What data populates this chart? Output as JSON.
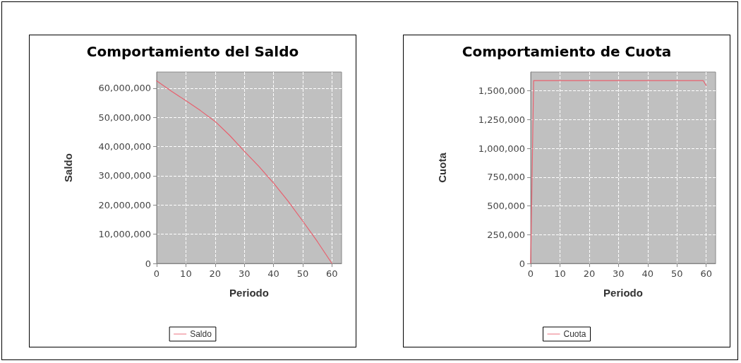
{
  "chart_data": [
    {
      "type": "line",
      "title": "Comportamiento del Saldo",
      "xlabel": "Periodo",
      "ylabel": "Saldo",
      "x": [
        0,
        5,
        10,
        15,
        20,
        25,
        30,
        35,
        40,
        45,
        50,
        55,
        60
      ],
      "series": [
        {
          "name": "Saldo",
          "color": "#e8606e",
          "values": [
            62500000,
            59000000,
            55700000,
            52300000,
            48600000,
            43800000,
            38400000,
            33200000,
            27500000,
            21300000,
            14500000,
            7500000,
            0
          ]
        }
      ],
      "xlim": [
        0,
        63.3
      ],
      "xticks": [
        0,
        10,
        20,
        30,
        40,
        50,
        60
      ],
      "ylim": [
        0,
        65500000
      ],
      "yticks": [
        {
          "value": 0,
          "label": "0"
        },
        {
          "value": 10000000,
          "label": "10,000,000"
        },
        {
          "value": 20000000,
          "label": "20,000,000"
        },
        {
          "value": 30000000,
          "label": "30,000,000"
        },
        {
          "value": 40000000,
          "label": "40,000,000"
        },
        {
          "value": 50000000,
          "label": "50,000,000"
        },
        {
          "value": 60000000,
          "label": "60,000,000"
        }
      ],
      "grid": true,
      "legend": "bottom",
      "marker": "none",
      "line_style": "solid"
    },
    {
      "type": "line",
      "title": "Comportamiento de Cuota",
      "xlabel": "Periodo",
      "ylabel": "Cuota",
      "x": [
        0,
        1,
        59,
        60
      ],
      "series": [
        {
          "name": "Cuota",
          "color": "#e8606e",
          "values": [
            0,
            1588000,
            1588000,
            1545000
          ]
        }
      ],
      "xlim": [
        0,
        63.2
      ],
      "xticks": [
        0,
        10,
        20,
        30,
        40,
        50,
        60
      ],
      "ylim": [
        0,
        1663000
      ],
      "yticks": [
        {
          "value": 0,
          "label": "0"
        },
        {
          "value": 250000,
          "label": "250,000"
        },
        {
          "value": 500000,
          "label": "500,000"
        },
        {
          "value": 750000,
          "label": "750,000"
        },
        {
          "value": 1000000,
          "label": "1,000,000"
        },
        {
          "value": 1250000,
          "label": "1,250,000"
        },
        {
          "value": 1500000,
          "label": "1,500,000"
        }
      ],
      "grid": true,
      "legend": "bottom",
      "marker": "none",
      "line_style": "solid"
    }
  ]
}
